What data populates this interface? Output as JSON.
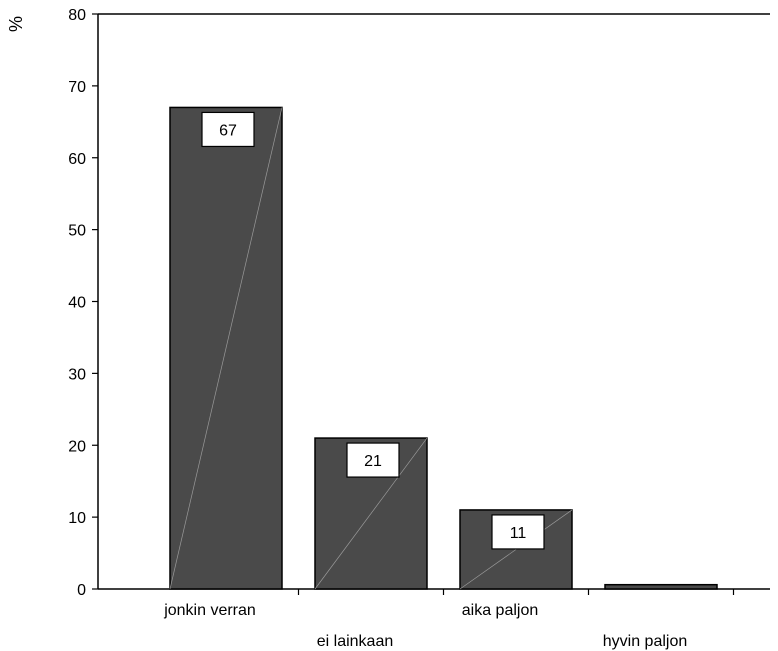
{
  "chart_data": {
    "type": "bar",
    "ylabel": "%",
    "ylim": [
      0,
      80
    ],
    "yticks": [
      0,
      10,
      20,
      30,
      40,
      50,
      60,
      70,
      80
    ],
    "categories": [
      "jonkin verran",
      "ei lainkaan",
      "aika paljon",
      "hyvin paljon"
    ],
    "values": [
      67,
      21,
      11,
      0.6
    ],
    "data_labels": [
      "67",
      "21",
      "11",
      ""
    ],
    "colors": {
      "bar_fill": "#4a4a4a",
      "bar_edge": "#000000",
      "label_box": "#ffffff"
    },
    "grid": false,
    "legend": "none"
  }
}
